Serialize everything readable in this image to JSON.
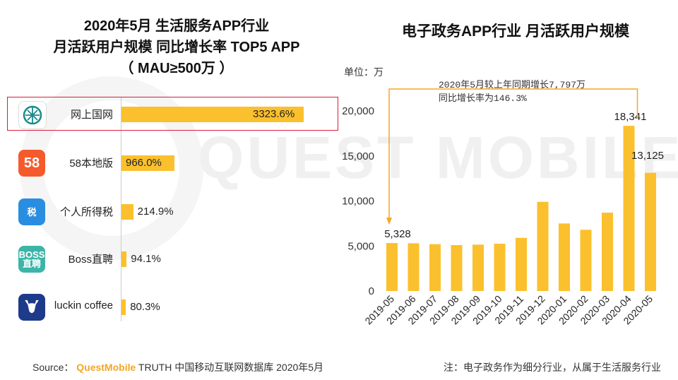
{
  "left_chart": {
    "title_lines": [
      "2020年5月 生活服务APP行业",
      "月活跃用户规模 同比增长率 TOP5 APP",
      "（ MAU≥500万 ）"
    ],
    "apps": [
      {
        "name": "网上国网",
        "value": 3323.6,
        "label": "3323.6%",
        "icon": "state-grid-logo-icon",
        "icon_text": "",
        "color": "#1a8a8c",
        "highlighted": true
      },
      {
        "name": "58本地版",
        "value": 966.0,
        "label": "966.0%",
        "icon": "58-logo-icon",
        "icon_text": "58",
        "color": "#f55a2c",
        "highlighted": false
      },
      {
        "name": "个人所得税",
        "value": 214.9,
        "label": "214.9%",
        "icon": "tax-shield-icon",
        "icon_text": "税",
        "color": "#2a8ee0",
        "highlighted": false
      },
      {
        "name": "Boss直聘",
        "value": 94.1,
        "label": "94.1%",
        "icon": "boss-logo-icon",
        "icon_text": "BOSS 直聘",
        "color": "#3bb5a8",
        "highlighted": false
      },
      {
        "name": "luckin coffee",
        "value": 80.3,
        "label": "80.3%",
        "icon": "deer-logo-icon",
        "icon_text": "",
        "color": "#1e3a8a",
        "highlighted": false
      }
    ]
  },
  "right_chart": {
    "title": "电子政务APP行业 月活跃用户规模",
    "unit_label": "单位：万",
    "annotation_lines": [
      "2020年5月较上年同期增长7,797万",
      "同比增长率为146.3%"
    ]
  },
  "chart_data": [
    {
      "type": "bar",
      "orientation": "horizontal",
      "title": "2020年5月 生活服务APP行业 月活跃用户规模 同比增长率 TOP5 APP（MAU≥500万）",
      "categories": [
        "网上国网",
        "58本地版",
        "个人所得税",
        "Boss直聘",
        "luckin coffee"
      ],
      "values": [
        3323.6,
        966.0,
        214.9,
        94.1,
        80.3
      ],
      "data_labels": [
        "3323.6%",
        "966.0%",
        "214.9%",
        "94.1%",
        "80.3%"
      ],
      "unit": "%"
    },
    {
      "type": "bar",
      "title": "电子政务APP行业 月活跃用户规模",
      "ylabel": "单位：万",
      "categories": [
        "2019-05",
        "2019-06",
        "2019-07",
        "2019-08",
        "2019-09",
        "2019-10",
        "2019-11",
        "2019-12",
        "2020-01",
        "2020-02",
        "2020-03",
        "2020-04",
        "2020-05"
      ],
      "values": [
        5328,
        5300,
        5200,
        5100,
        5150,
        5250,
        5900,
        9900,
        7500,
        6800,
        8700,
        18341,
        13125
      ],
      "data_labels": {
        "0": "5,328",
        "11": "18,341",
        "12": "13,125"
      },
      "yticks": [
        0,
        5000,
        10000,
        15000,
        20000
      ],
      "ytick_labels": [
        "0",
        "5,000",
        "10,000",
        "15,000",
        "20,000"
      ],
      "ylim": [
        0,
        22000
      ],
      "color": "#fbc02d"
    }
  ],
  "watermark": "QUEST MOBILE",
  "footer": {
    "source_prefix": "Source：",
    "brand": "QuestMobile",
    "source_rest": "TRUTH 中国移动互联网数据库 2020年5月",
    "note": "注：电子政务作为细分行业，从属于生活服务行业"
  }
}
